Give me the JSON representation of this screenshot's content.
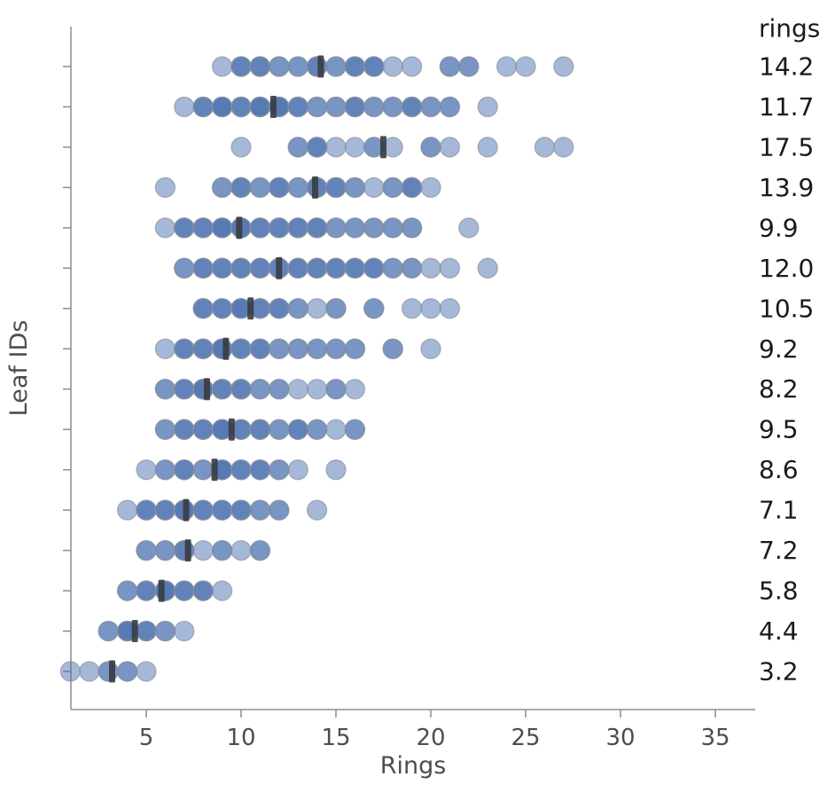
{
  "chart_data": {
    "type": "scatter",
    "variant": "strip-plot",
    "title": "",
    "xlabel": "Rings",
    "ylabel": "Leaf IDs",
    "right_column_header": "rings",
    "x_ticks": [
      5,
      10,
      15,
      20,
      25,
      30,
      35
    ],
    "xlim": [
      1,
      37
    ],
    "grid": false,
    "legend_position": "right-margin",
    "marker": "circle",
    "mean_marker": "vertical-bar",
    "rows": [
      {
        "mean_rings": "14.2",
        "mean": 14.2,
        "points": [
          [
            9,
            1
          ],
          [
            10,
            3
          ],
          [
            11,
            3
          ],
          [
            12,
            2
          ],
          [
            13,
            2
          ],
          [
            14,
            3
          ],
          [
            15,
            2
          ],
          [
            16,
            3
          ],
          [
            17,
            3
          ],
          [
            18,
            1
          ],
          [
            19,
            1
          ],
          [
            21,
            2
          ],
          [
            22,
            2
          ],
          [
            24,
            1
          ],
          [
            25,
            1
          ],
          [
            27,
            1
          ]
        ]
      },
      {
        "mean_rings": "11.7",
        "mean": 11.7,
        "points": [
          [
            7,
            1
          ],
          [
            8,
            3
          ],
          [
            9,
            4
          ],
          [
            10,
            3
          ],
          [
            11,
            4
          ],
          [
            12,
            4
          ],
          [
            13,
            3
          ],
          [
            14,
            2
          ],
          [
            15,
            2
          ],
          [
            16,
            3
          ],
          [
            17,
            2
          ],
          [
            18,
            2
          ],
          [
            19,
            3
          ],
          [
            20,
            2
          ],
          [
            21,
            2
          ],
          [
            23,
            1
          ]
        ]
      },
      {
        "mean_rings": "17.5",
        "mean": 17.5,
        "points": [
          [
            10,
            1
          ],
          [
            13,
            2
          ],
          [
            14,
            3
          ],
          [
            15,
            1
          ],
          [
            16,
            1
          ],
          [
            17,
            2
          ],
          [
            18,
            1
          ],
          [
            20,
            2
          ],
          [
            21,
            1
          ],
          [
            23,
            1
          ],
          [
            26,
            1
          ],
          [
            27,
            1
          ]
        ]
      },
      {
        "mean_rings": "13.9",
        "mean": 13.9,
        "points": [
          [
            6,
            1
          ],
          [
            9,
            2
          ],
          [
            10,
            3
          ],
          [
            11,
            2
          ],
          [
            12,
            3
          ],
          [
            13,
            2
          ],
          [
            14,
            3
          ],
          [
            15,
            3
          ],
          [
            16,
            2
          ],
          [
            17,
            1
          ],
          [
            18,
            2
          ],
          [
            19,
            3
          ],
          [
            20,
            1
          ]
        ]
      },
      {
        "mean_rings": "9.9",
        "mean": 9.9,
        "points": [
          [
            6,
            1
          ],
          [
            7,
            3
          ],
          [
            8,
            3
          ],
          [
            9,
            4
          ],
          [
            10,
            4
          ],
          [
            11,
            3
          ],
          [
            12,
            3
          ],
          [
            13,
            3
          ],
          [
            14,
            3
          ],
          [
            15,
            2
          ],
          [
            16,
            2
          ],
          [
            17,
            2
          ],
          [
            18,
            2
          ],
          [
            19,
            2
          ],
          [
            22,
            1
          ]
        ]
      },
      {
        "mean_rings": "12.0",
        "mean": 12.0,
        "points": [
          [
            7,
            2
          ],
          [
            8,
            3
          ],
          [
            9,
            3
          ],
          [
            10,
            3
          ],
          [
            11,
            3
          ],
          [
            12,
            3
          ],
          [
            13,
            3
          ],
          [
            14,
            3
          ],
          [
            15,
            3
          ],
          [
            16,
            3
          ],
          [
            17,
            3
          ],
          [
            18,
            2
          ],
          [
            19,
            2
          ],
          [
            20,
            1
          ],
          [
            21,
            1
          ],
          [
            23,
            1
          ]
        ]
      },
      {
        "mean_rings": "10.5",
        "mean": 10.5,
        "points": [
          [
            8,
            3
          ],
          [
            9,
            3
          ],
          [
            10,
            4
          ],
          [
            11,
            3
          ],
          [
            12,
            3
          ],
          [
            13,
            2
          ],
          [
            14,
            1
          ],
          [
            15,
            2
          ],
          [
            17,
            2
          ],
          [
            19,
            1
          ],
          [
            20,
            1
          ],
          [
            21,
            1
          ]
        ]
      },
      {
        "mean_rings": "9.2",
        "mean": 9.2,
        "points": [
          [
            6,
            1
          ],
          [
            7,
            3
          ],
          [
            8,
            3
          ],
          [
            9,
            4
          ],
          [
            10,
            3
          ],
          [
            11,
            3
          ],
          [
            12,
            2
          ],
          [
            13,
            2
          ],
          [
            14,
            2
          ],
          [
            15,
            2
          ],
          [
            16,
            2
          ],
          [
            18,
            2
          ],
          [
            20,
            1
          ]
        ]
      },
      {
        "mean_rings": "8.2",
        "mean": 8.2,
        "points": [
          [
            6,
            2
          ],
          [
            7,
            3
          ],
          [
            8,
            4
          ],
          [
            9,
            3
          ],
          [
            10,
            3
          ],
          [
            11,
            2
          ],
          [
            12,
            2
          ],
          [
            13,
            1
          ],
          [
            14,
            1
          ],
          [
            15,
            2
          ],
          [
            16,
            1
          ]
        ]
      },
      {
        "mean_rings": "9.5",
        "mean": 9.5,
        "points": [
          [
            6,
            2
          ],
          [
            7,
            3
          ],
          [
            8,
            3
          ],
          [
            9,
            4
          ],
          [
            10,
            3
          ],
          [
            11,
            3
          ],
          [
            12,
            2
          ],
          [
            13,
            3
          ],
          [
            14,
            2
          ],
          [
            15,
            1
          ],
          [
            16,
            2
          ]
        ]
      },
      {
        "mean_rings": "8.6",
        "mean": 8.6,
        "points": [
          [
            5,
            1
          ],
          [
            6,
            2
          ],
          [
            7,
            3
          ],
          [
            8,
            2
          ],
          [
            9,
            4
          ],
          [
            10,
            3
          ],
          [
            11,
            3
          ],
          [
            12,
            2
          ],
          [
            13,
            1
          ],
          [
            15,
            1
          ]
        ]
      },
      {
        "mean_rings": "7.1",
        "mean": 7.1,
        "points": [
          [
            4,
            1
          ],
          [
            5,
            3
          ],
          [
            6,
            3
          ],
          [
            7,
            4
          ],
          [
            8,
            3
          ],
          [
            9,
            3
          ],
          [
            10,
            3
          ],
          [
            11,
            2
          ],
          [
            12,
            2
          ],
          [
            14,
            1
          ]
        ]
      },
      {
        "mean_rings": "7.2",
        "mean": 7.2,
        "points": [
          [
            5,
            2
          ],
          [
            6,
            2
          ],
          [
            7,
            3
          ],
          [
            8,
            1
          ],
          [
            9,
            2
          ],
          [
            10,
            1
          ],
          [
            11,
            2
          ]
        ]
      },
      {
        "mean_rings": "5.8",
        "mean": 5.8,
        "points": [
          [
            4,
            2
          ],
          [
            5,
            3
          ],
          [
            6,
            4
          ],
          [
            7,
            3
          ],
          [
            8,
            3
          ],
          [
            9,
            1
          ]
        ]
      },
      {
        "mean_rings": "4.4",
        "mean": 4.4,
        "points": [
          [
            3,
            2
          ],
          [
            4,
            4
          ],
          [
            5,
            3
          ],
          [
            6,
            2
          ],
          [
            7,
            1
          ]
        ]
      },
      {
        "mean_rings": "3.2",
        "mean": 3.2,
        "points": [
          [
            1,
            1
          ],
          [
            2,
            1
          ],
          [
            3,
            2
          ],
          [
            4,
            2
          ],
          [
            5,
            1
          ]
        ]
      }
    ],
    "colors": {
      "point_fill": "#4C72B0",
      "point_alpha": 0.5,
      "point_edge": "#8b93a0",
      "mean_marker": "#3a3d42",
      "spine": "#8c8c8c",
      "tick_label": "#4d4d4d",
      "axis_label": "#4d4d4d",
      "value_label": "#1a1a1a"
    }
  }
}
